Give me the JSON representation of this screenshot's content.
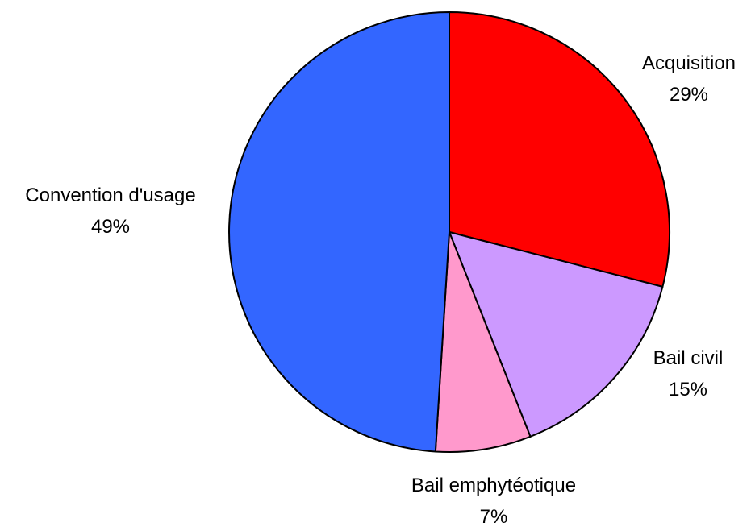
{
  "chart_data": {
    "type": "pie",
    "start_angle": "12 o'clock",
    "direction": "clockwise",
    "slices": [
      {
        "label": "Acquisition",
        "value": 29,
        "percent_label": "29%",
        "color": "#ff0000"
      },
      {
        "label": "Bail civil",
        "value": 15,
        "percent_label": "15%",
        "color": "#cc99ff"
      },
      {
        "label": "Bail emphytéotique",
        "value": 7,
        "percent_label": "7%",
        "color": "#ff99cc"
      },
      {
        "label": "Convention d'usage",
        "value": 49,
        "percent_label": "49%",
        "color": "#3366ff"
      }
    ]
  }
}
